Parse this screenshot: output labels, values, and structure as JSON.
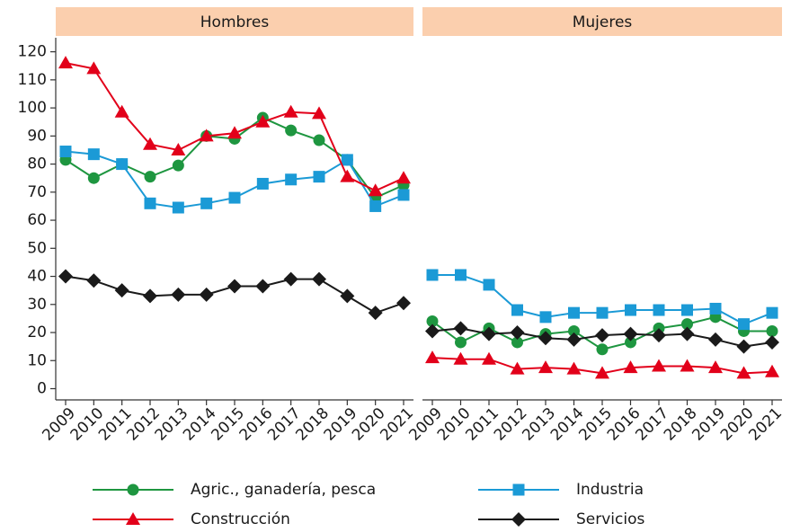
{
  "chart_data": [
    {
      "type": "line",
      "title": "Hombres",
      "categories": [
        "2009",
        "2010",
        "2011",
        "2012",
        "2013",
        "2014",
        "2015",
        "2016",
        "2017",
        "2018",
        "2019",
        "2020",
        "2021"
      ],
      "ylim": [
        -4,
        125
      ],
      "yticks": [
        0,
        10,
        20,
        30,
        40,
        50,
        60,
        70,
        80,
        90,
        100,
        110,
        120
      ],
      "series": [
        {
          "name": "Agric., ganadería, pesca",
          "color": "#1e9640",
          "marker": "circle",
          "values": [
            81.5,
            75,
            80,
            75.5,
            79.5,
            90,
            89,
            96.5,
            92,
            88.5,
            81.5,
            68,
            72.5
          ]
        },
        {
          "name": "Industria",
          "color": "#1b9ad6",
          "marker": "square",
          "values": [
            84.5,
            83.5,
            80,
            66,
            64.5,
            66,
            68,
            73,
            74.5,
            75.5,
            81.5,
            65,
            69
          ]
        },
        {
          "name": "Construcción",
          "color": "#e2001a",
          "marker": "triangle",
          "values": [
            116,
            114,
            98.5,
            87,
            85,
            90,
            91,
            95,
            98.5,
            98,
            75.5,
            70.5,
            75
          ]
        },
        {
          "name": "Servicios",
          "color": "#1a1a1a",
          "marker": "diamond",
          "values": [
            40,
            38.5,
            35,
            33,
            33.5,
            33.5,
            36.5,
            36.5,
            39,
            39,
            33,
            27,
            30.5
          ]
        }
      ]
    },
    {
      "type": "line",
      "title": "Mujeres",
      "categories": [
        "2009",
        "2010",
        "2011",
        "2012",
        "2013",
        "2014",
        "2015",
        "2016",
        "2017",
        "2018",
        "2019",
        "2020",
        "2021"
      ],
      "ylim": [
        -4,
        125
      ],
      "series": [
        {
          "color": "#1e9640",
          "marker": "circle",
          "values": [
            24,
            16.5,
            21.5,
            16.5,
            19.5,
            20.5,
            14,
            16.5,
            21.5,
            23,
            25.5,
            20.5,
            20.5
          ]
        },
        {
          "color": "#1b9ad6",
          "marker": "square",
          "values": [
            40.5,
            40.5,
            37,
            28,
            25.5,
            27,
            27,
            28,
            28,
            28,
            28.5,
            23,
            27
          ]
        },
        {
          "color": "#e2001a",
          "marker": "triangle",
          "values": [
            11,
            10.5,
            10.5,
            7,
            7.5,
            7,
            5.5,
            7.5,
            8,
            8,
            7.5,
            5.5,
            6
          ]
        },
        {
          "color": "#1a1a1a",
          "marker": "diamond",
          "values": [
            20.5,
            21.5,
            19.5,
            20,
            18,
            17.5,
            19,
            19.5,
            19,
            19.5,
            17.5,
            15,
            16.5
          ]
        }
      ]
    }
  ]
}
